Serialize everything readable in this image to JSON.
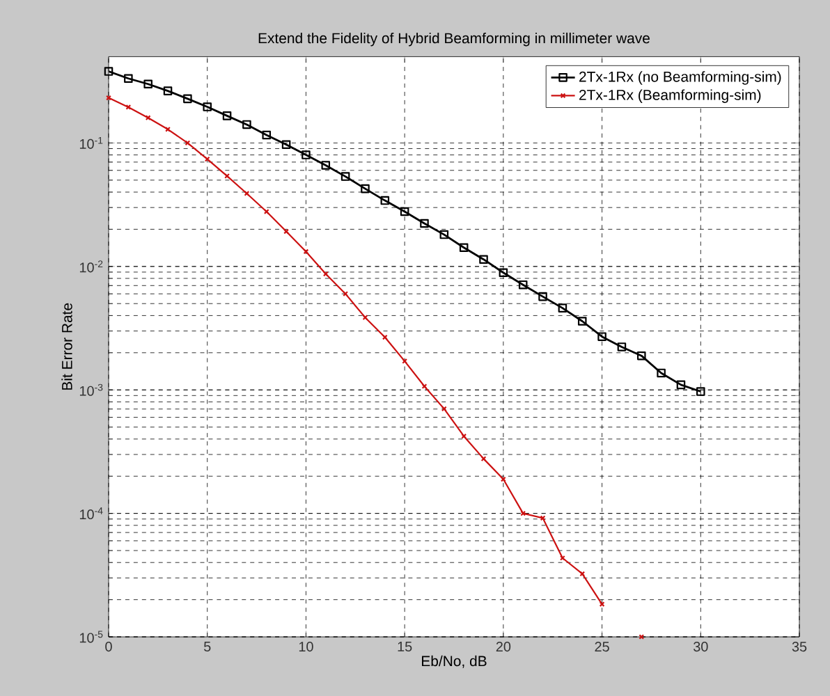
{
  "chart_data": {
    "type": "line",
    "title": "Extend the Fidelity of Hybrid Beamforming in millimeter wave",
    "xlabel": "Eb/No, dB",
    "ylabel": "Bit Error Rate",
    "x": [
      0,
      1,
      2,
      3,
      4,
      5,
      6,
      7,
      8,
      9,
      10,
      11,
      12,
      13,
      14,
      15,
      16,
      17,
      18,
      19,
      20,
      21,
      22,
      23,
      24,
      25,
      26,
      27,
      28,
      29,
      30
    ],
    "series": [
      {
        "name": "2Tx-1Rx (no Beamforming-sim)",
        "color": "#000000",
        "marker": "square",
        "values": [
          0.38,
          0.333,
          0.3,
          0.264,
          0.228,
          0.196,
          0.166,
          0.141,
          0.116,
          0.097,
          0.08,
          0.066,
          0.0535,
          0.0426,
          0.0342,
          0.0278,
          0.0223,
          0.0181,
          0.0142,
          0.0114,
          0.0089,
          0.0071,
          0.0057,
          0.0046,
          0.0036,
          0.0027,
          0.00223,
          0.00189,
          0.00137,
          0.0011,
          0.00097
        ]
      },
      {
        "name": "2Tx-1Rx (Beamforming-sim)",
        "color": "#cc1111",
        "marker": "cross",
        "values": [
          0.232,
          0.195,
          0.16,
          0.129,
          0.1,
          0.074,
          0.054,
          0.039,
          0.0278,
          0.0192,
          0.0132,
          0.0087,
          0.006,
          0.00386,
          0.00267,
          0.00171,
          0.00107,
          0.000703,
          0.000422,
          0.000277,
          0.000189,
          0.0001,
          9.16e-05,
          4.35e-05,
          3.24e-05,
          1.84e-05,
          null,
          1e-05,
          null,
          null,
          null
        ]
      }
    ],
    "xlim": [
      0,
      35
    ],
    "xticks": [
      0,
      5,
      10,
      15,
      20,
      25,
      30,
      35
    ],
    "ylim": [
      1e-05,
      0.5
    ],
    "log": "y",
    "yticks": [
      {
        "value": 1e-05,
        "label": "10$^{-5}$"
      },
      {
        "value": 0.0001,
        "label": "10$^{-4}$"
      },
      {
        "value": 0.001,
        "label": "10$^{-3}$"
      },
      {
        "value": 0.01,
        "label": "10$^{-2}$"
      },
      {
        "value": 0.1,
        "label": "10$^{-1}$"
      }
    ],
    "grid": true,
    "legend": "top right",
    "line_style": "solid"
  }
}
